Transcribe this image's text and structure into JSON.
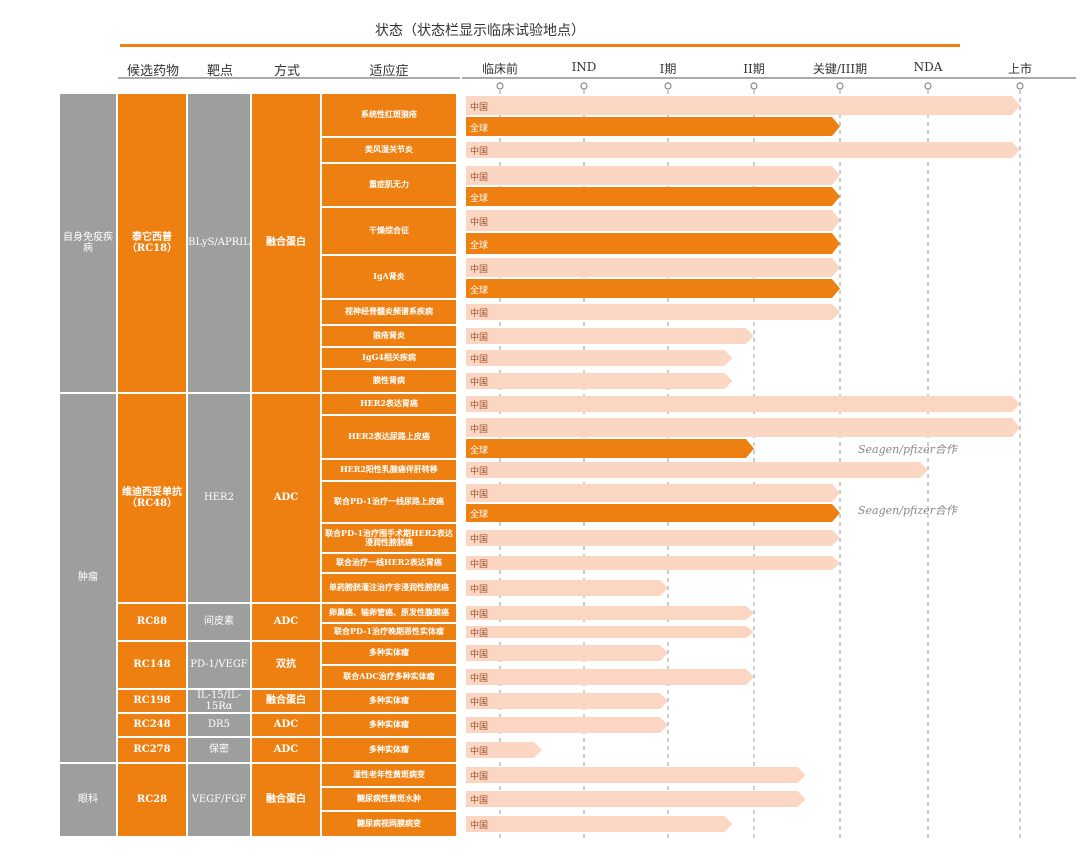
{
  "title": "状态（状态栏显示临床试验地点）",
  "headers": {
    "candidate": "候选药物",
    "target": "靶点",
    "modality": "方式",
    "indication": "适应症"
  },
  "stages": [
    "临床前",
    "IND",
    "I期",
    "II期",
    "关键/III期",
    "NDA",
    "上市"
  ],
  "region_labels": {
    "china": "中国",
    "global": "全球"
  },
  "colors": {
    "orange": "#ee8012",
    "gray": "#9e9e9e",
    "china_bar": "#fbd7c3",
    "stage_line": "#999999"
  },
  "categories": [
    "自身免疫疾病",
    "肿瘤",
    "眼科"
  ],
  "candidates": [
    "泰它西普（RC18）",
    "维迪西妥单抗（RC48）",
    "RC88",
    "RC148",
    "RC198",
    "RC248",
    "RC278",
    "RC28"
  ],
  "targets": [
    "BLyS/APRIL",
    "HER2",
    "间皮素",
    "PD-1/VEGF",
    "IL-15/IL-15Rα",
    "DR5",
    "保密",
    "VEGF/FGF"
  ],
  "modalities": [
    "融合蛋白",
    "ADC",
    "ADC",
    "双抗",
    "融合蛋白",
    "ADC",
    "ADC",
    "融合蛋白"
  ],
  "indications": [
    "系统性红斑狼疮",
    "类风湿关节炎",
    "重症肌无力",
    "干燥综合征",
    "IgA肾炎",
    "视神经脊髓炎频谱系疾病",
    "狼疮肾炎",
    "IgG4相关疾病",
    "膜性肾病",
    "HER2表达胃癌",
    "HER2表达尿路上皮癌",
    "HER2阳性乳腺癌伴肝转移",
    "联合PD-1治疗一线尿路上皮癌",
    "联合PD-1治疗围手术期HER2表达浸润性膀胱癌",
    "联合治疗一线HER2表达胃癌",
    "单药膀胱灌注治疗非浸润性膀胱癌",
    "卵巢癌、输卵管癌、原发性腹膜癌",
    "联合PD-1治疗晚期恶性实体瘤",
    "多种实体瘤",
    "联合ADC治疗多种实体瘤",
    "多种实体瘤",
    "多种实体瘤",
    "多种实体瘤",
    "湿性老年性黄斑病变",
    "糖尿病性黄斑水肿",
    "糖尿病视网膜病变"
  ],
  "partner_notes": [
    "Seagen/pfizer合作",
    "Seagen/pfizer合作"
  ],
  "chart_data": {
    "type": "pipeline",
    "title": "状态（状态栏显示临床试验地点）",
    "stages": [
      "临床前",
      "IND",
      "I期",
      "II期",
      "关键/III期",
      "NDA",
      "上市"
    ],
    "stage_scale": "0=临床前 … 6=上市",
    "programs": [
      {
        "indication": "系统性红斑狼疮",
        "bars": [
          {
            "region": "中国",
            "progress": 6.0
          },
          {
            "region": "全球",
            "progress": 4.0
          }
        ]
      },
      {
        "indication": "类风湿关节炎",
        "bars": [
          {
            "region": "中国",
            "progress": 6.0
          }
        ]
      },
      {
        "indication": "重症肌无力",
        "bars": [
          {
            "region": "中国",
            "progress": 4.0
          },
          {
            "region": "全球",
            "progress": 4.0
          }
        ]
      },
      {
        "indication": "干燥综合征",
        "bars": [
          {
            "region": "中国",
            "progress": 4.0
          },
          {
            "region": "全球",
            "progress": 4.0
          }
        ]
      },
      {
        "indication": "IgA肾炎",
        "bars": [
          {
            "region": "中国",
            "progress": 4.0
          },
          {
            "region": "全球",
            "progress": 4.0
          }
        ]
      },
      {
        "indication": "视神经脊髓炎频谱系疾病",
        "bars": [
          {
            "region": "中国",
            "progress": 4.0
          }
        ]
      },
      {
        "indication": "狼疮肾炎",
        "bars": [
          {
            "region": "中国",
            "progress": 3.0
          }
        ]
      },
      {
        "indication": "IgG4相关疾病",
        "bars": [
          {
            "region": "中国",
            "progress": 2.75
          }
        ]
      },
      {
        "indication": "膜性肾病",
        "bars": [
          {
            "region": "中国",
            "progress": 2.75
          }
        ]
      },
      {
        "indication": "HER2表达胃癌",
        "bars": [
          {
            "region": "中国",
            "progress": 6.0
          }
        ]
      },
      {
        "indication": "HER2表达尿路上皮癌",
        "bars": [
          {
            "region": "中国",
            "progress": 6.0
          },
          {
            "region": "全球",
            "progress": 3.0
          }
        ]
      },
      {
        "indication": "HER2阳性乳腺癌伴肝转移",
        "bars": [
          {
            "region": "中国",
            "progress": 5.0
          }
        ]
      },
      {
        "indication": "联合PD-1治疗一线尿路上皮癌",
        "bars": [
          {
            "region": "中国",
            "progress": 4.0
          },
          {
            "region": "全球",
            "progress": 4.0
          }
        ]
      },
      {
        "indication": "联合PD-1治疗围手术期HER2表达浸润性膀胱癌",
        "bars": [
          {
            "region": "中国",
            "progress": 4.0
          }
        ]
      },
      {
        "indication": "联合治疗一线HER2表达胃癌",
        "bars": [
          {
            "region": "中国",
            "progress": 4.0
          }
        ]
      },
      {
        "indication": "单药膀胱灌注治疗非浸润性膀胱癌",
        "bars": [
          {
            "region": "中国",
            "progress": 2.0
          }
        ]
      },
      {
        "indication": "卵巢癌、输卵管癌、原发性腹膜癌",
        "bars": [
          {
            "region": "中国",
            "progress": 3.0
          }
        ]
      },
      {
        "indication": "联合PD-1治疗晚期恶性实体瘤",
        "bars": [
          {
            "region": "中国",
            "progress": 3.0
          }
        ]
      },
      {
        "indication": "多种实体瘤",
        "bars": [
          {
            "region": "中国",
            "progress": 2.0
          }
        ]
      },
      {
        "indication": "联合ADC治疗多种实体瘤",
        "bars": [
          {
            "region": "中国",
            "progress": 3.0
          }
        ]
      },
      {
        "indication": "多种实体瘤",
        "bars": [
          {
            "region": "中国",
            "progress": 2.0
          }
        ]
      },
      {
        "indication": "多种实体瘤",
        "bars": [
          {
            "region": "中国",
            "progress": 2.0
          }
        ]
      },
      {
        "indication": "多种实体瘤",
        "bars": [
          {
            "region": "中国",
            "progress": 0.5
          }
        ]
      },
      {
        "indication": "湿性老年性黄斑病变",
        "bars": [
          {
            "region": "中国",
            "progress": 3.6
          }
        ]
      },
      {
        "indication": "糖尿病性黄斑水肿",
        "bars": [
          {
            "region": "中国",
            "progress": 3.6
          }
        ]
      },
      {
        "indication": "糖尿病视网膜病变",
        "bars": [
          {
            "region": "中国",
            "progress": 2.75
          }
        ]
      }
    ]
  }
}
